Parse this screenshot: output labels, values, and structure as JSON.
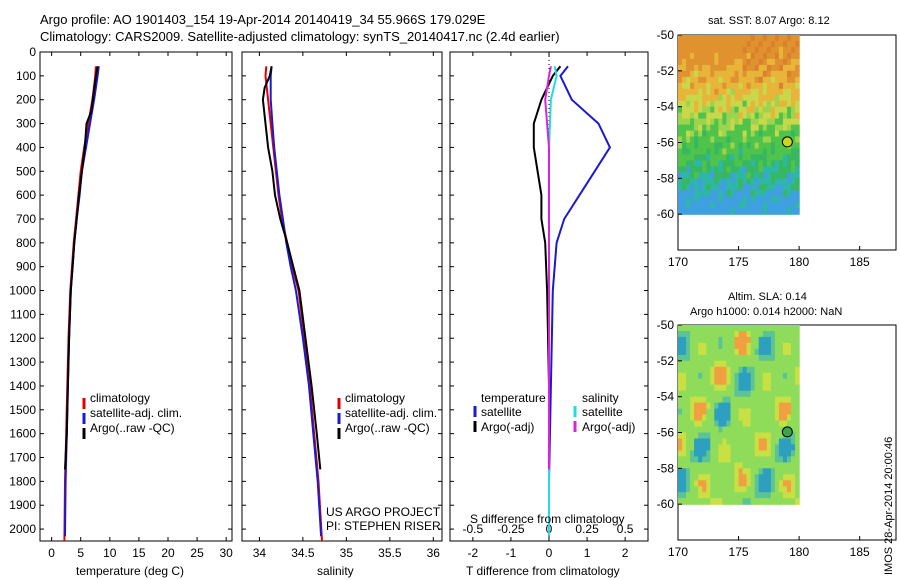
{
  "header": {
    "line1": "Argo profile: AO 1901403_154 19-Apr-2014 20140419_34 55.966S 179.029E",
    "line2": "Climatology: CARS2009. Satellite-adjusted climatology: synTS_20140417.nc (2.4d earlier)"
  },
  "colors": {
    "climatology": "#e00000",
    "satellite": "#1a1ad0",
    "argo": "#000000",
    "sal_satellite": "#22dddd",
    "sal_argo": "#dd22dd"
  },
  "project": {
    "line1": "US ARGO PROJECT",
    "line2": "PI: STEPHEN RISER"
  },
  "timestamp": "IMOS 28-Apr-2014 20:00:46",
  "chart_data": [
    {
      "type": "line",
      "xlabel": "temperature (deg C)",
      "xlim": [
        -2,
        31
      ],
      "ylim": [
        2050,
        0
      ],
      "y_reversed": true,
      "yticks": [
        0,
        100,
        200,
        300,
        400,
        500,
        600,
        700,
        800,
        900,
        1000,
        1100,
        1200,
        1300,
        1400,
        1500,
        1600,
        1700,
        1800,
        1900,
        2000
      ],
      "xticks": [
        0,
        5,
        10,
        15,
        20,
        25,
        30
      ],
      "legend": [
        "climatology",
        "satellite-adj. clim.",
        "Argo(..raw -QC)"
      ],
      "legend_position": "lower-middle",
      "series": [
        {
          "name": "climatology",
          "color": "#e00000",
          "points": [
            [
              7.6,
              60
            ],
            [
              7.5,
              100
            ],
            [
              7.0,
              200
            ],
            [
              6.3,
              300
            ],
            [
              5.6,
              400
            ],
            [
              5.0,
              500
            ],
            [
              4.6,
              600
            ],
            [
              4.2,
              700
            ],
            [
              3.8,
              800
            ],
            [
              3.5,
              900
            ],
            [
              3.2,
              1000
            ],
            [
              2.9,
              1200
            ],
            [
              2.7,
              1400
            ],
            [
              2.5,
              1600
            ],
            [
              2.3,
              1800
            ],
            [
              2.2,
              2050
            ]
          ]
        },
        {
          "name": "satellite-adj. clim.",
          "color": "#1a1ad0",
          "points": [
            [
              8.1,
              60
            ],
            [
              7.9,
              100
            ],
            [
              7.3,
              200
            ],
            [
              6.6,
              300
            ],
            [
              5.9,
              400
            ],
            [
              5.2,
              500
            ],
            [
              4.8,
              600
            ],
            [
              4.3,
              700
            ],
            [
              3.9,
              800
            ],
            [
              3.6,
              900
            ],
            [
              3.3,
              1000
            ],
            [
              3.0,
              1200
            ],
            [
              2.8,
              1400
            ],
            [
              2.6,
              1600
            ],
            [
              2.4,
              1800
            ],
            [
              2.3,
              2030
            ]
          ]
        },
        {
          "name": "Argo(..raw -QC)",
          "color": "#000000",
          "points": [
            [
              7.9,
              60
            ],
            [
              7.6,
              100
            ],
            [
              7.2,
              180
            ],
            [
              6.8,
              250
            ],
            [
              6.0,
              300
            ],
            [
              5.7,
              400
            ],
            [
              5.2,
              500
            ],
            [
              4.7,
              600
            ],
            [
              4.3,
              700
            ],
            [
              3.9,
              800
            ],
            [
              3.6,
              900
            ],
            [
              3.3,
              1000
            ],
            [
              3.0,
              1200
            ],
            [
              2.8,
              1400
            ],
            [
              2.6,
              1600
            ],
            [
              2.3,
              1750
            ]
          ]
        }
      ]
    },
    {
      "type": "line",
      "xlabel": "salinity",
      "xlim": [
        33.8,
        36.1
      ],
      "ylim": [
        2050,
        0
      ],
      "y_reversed": true,
      "xticks": [
        34,
        34.5,
        35,
        35.5,
        36
      ],
      "legend": [
        "climatology",
        "satellite-adj. clim.",
        "Argo(..raw -QC)"
      ],
      "legend_position": "lower-middle",
      "series": [
        {
          "name": "climatology",
          "color": "#e00000",
          "points": [
            [
              34.08,
              60
            ],
            [
              34.07,
              100
            ],
            [
              34.1,
              200
            ],
            [
              34.13,
              300
            ],
            [
              34.16,
              400
            ],
            [
              34.19,
              500
            ],
            [
              34.22,
              600
            ],
            [
              34.26,
              700
            ],
            [
              34.32,
              800
            ],
            [
              34.38,
              900
            ],
            [
              34.45,
              1000
            ],
            [
              34.52,
              1200
            ],
            [
              34.58,
              1400
            ],
            [
              34.63,
              1600
            ],
            [
              34.68,
              1800
            ],
            [
              34.72,
              2050
            ]
          ]
        },
        {
          "name": "satellite-adj. clim.",
          "color": "#1a1ad0",
          "points": [
            [
              34.14,
              60
            ],
            [
              34.13,
              100
            ],
            [
              34.13,
              200
            ],
            [
              34.15,
              300
            ],
            [
              34.17,
              400
            ],
            [
              34.2,
              500
            ],
            [
              34.23,
              600
            ],
            [
              34.27,
              700
            ],
            [
              34.31,
              800
            ],
            [
              34.36,
              900
            ],
            [
              34.42,
              1000
            ],
            [
              34.5,
              1200
            ],
            [
              34.57,
              1400
            ],
            [
              34.62,
              1600
            ],
            [
              34.67,
              1800
            ],
            [
              34.71,
              2030
            ]
          ]
        },
        {
          "name": "Argo(..raw -QC)",
          "color": "#000000",
          "points": [
            [
              34.14,
              60
            ],
            [
              34.12,
              100
            ],
            [
              34.06,
              150
            ],
            [
              34.04,
              200
            ],
            [
              34.07,
              300
            ],
            [
              34.1,
              400
            ],
            [
              34.15,
              500
            ],
            [
              34.18,
              600
            ],
            [
              34.24,
              700
            ],
            [
              34.32,
              800
            ],
            [
              34.39,
              900
            ],
            [
              34.46,
              1000
            ],
            [
              34.53,
              1200
            ],
            [
              34.6,
              1400
            ],
            [
              34.66,
              1600
            ],
            [
              34.7,
              1750
            ]
          ]
        }
      ]
    },
    {
      "type": "line",
      "title_bottom": "S difference from climatology",
      "xlabel": "T difference from climatology",
      "xlim": [
        -2.6,
        2.6
      ],
      "ylim": [
        2050,
        0
      ],
      "y_reversed": true,
      "xticks": [
        -2,
        -1,
        0,
        1,
        2
      ],
      "top_ticks_labels": [
        "-0.5",
        "-0.25",
        "0",
        "0.25",
        "0.5"
      ],
      "legend_temperature": "temperature",
      "legend_salinity": "salinity",
      "legend": [
        "satellite",
        "Argo(-adj)",
        "satellite",
        "Argo(-adj)"
      ],
      "legend_position": "lower-middle",
      "series": [
        {
          "name": "satellite",
          "group": "temperature",
          "color": "#1a1ad0",
          "points": [
            [
              0.5,
              60
            ],
            [
              0.3,
              100
            ],
            [
              0.6,
              200
            ],
            [
              1.3,
              300
            ],
            [
              1.6,
              400
            ],
            [
              1.2,
              500
            ],
            [
              0.8,
              600
            ],
            [
              0.4,
              700
            ],
            [
              0.2,
              800
            ],
            [
              0.1,
              1000
            ],
            [
              0.05,
              1400
            ],
            [
              0.0,
              1800
            ],
            [
              0.0,
              2030
            ]
          ]
        },
        {
          "name": "Argo(-adj)",
          "group": "temperature",
          "color": "#000000",
          "points": [
            [
              0.3,
              60
            ],
            [
              0.1,
              100
            ],
            [
              -0.2,
              200
            ],
            [
              -0.4,
              300
            ],
            [
              -0.4,
              400
            ],
            [
              -0.3,
              500
            ],
            [
              -0.2,
              600
            ],
            [
              -0.2,
              700
            ],
            [
              -0.1,
              800
            ],
            [
              -0.05,
              1000
            ],
            [
              0.0,
              1400
            ],
            [
              0.0,
              1750
            ]
          ]
        },
        {
          "name": "satellite",
          "group": "salinity",
          "color": "#22dddd",
          "points": [
            [
              0.15,
              60
            ],
            [
              0.2,
              100
            ],
            [
              0.05,
              200
            ],
            [
              0.0,
              400
            ],
            [
              0.0,
              600
            ],
            [
              0.0,
              800
            ],
            [
              0.0,
              1200
            ],
            [
              0.0,
              1800
            ],
            [
              0.0,
              2030
            ]
          ]
        },
        {
          "name": "Argo(-adj)",
          "group": "salinity",
          "color": "#dd22dd",
          "points": [
            [
              0.05,
              60
            ],
            [
              0.0,
              100
            ],
            [
              -0.1,
              200
            ],
            [
              -0.05,
              300
            ],
            [
              0.0,
              400
            ],
            [
              0.0,
              600
            ],
            [
              0.0,
              1000
            ],
            [
              0.0,
              1400
            ],
            [
              0.0,
              1750
            ]
          ]
        }
      ]
    },
    {
      "type": "heatmap",
      "title": "sat. SST: 8.07 Argo: 8.12",
      "xlim": [
        170,
        188
      ],
      "ylim": [
        -62,
        -50
      ],
      "xticks": [
        170,
        175,
        180,
        185
      ],
      "yticks": [
        -50,
        -52,
        -54,
        -56,
        -58,
        -60
      ],
      "marker": {
        "lon": 179.029,
        "lat": -55.966
      }
    },
    {
      "type": "heatmap",
      "title_line1": "Altim. SLA: 0.14",
      "title_line2": "Argo h1000: 0.014 h2000: NaN",
      "xlim": [
        170,
        188
      ],
      "ylim": [
        -62,
        -50
      ],
      "xticks": [
        170,
        175,
        180,
        185
      ],
      "yticks": [
        -50,
        -52,
        -54,
        -56,
        -58,
        -60
      ],
      "marker": {
        "lon": 179.029,
        "lat": -55.966
      }
    }
  ]
}
